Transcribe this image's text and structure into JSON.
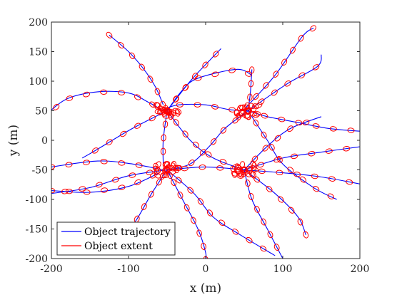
{
  "chart_data": {
    "type": "line",
    "title": "",
    "xlabel": "x (m)",
    "ylabel": "y (m)",
    "xlim": [
      -200,
      200
    ],
    "ylim": [
      -200,
      200
    ],
    "xticks": [
      -200,
      -100,
      0,
      100,
      200
    ],
    "yticks": [
      -200,
      -150,
      -100,
      -50,
      0,
      50,
      100,
      150,
      200
    ],
    "xtick_labels": [
      "-200",
      "-100",
      "0",
      "100",
      "200"
    ],
    "ytick_labels": [
      "-200",
      "-150",
      "-100",
      "-50",
      "0",
      "50",
      "100",
      "150",
      "200"
    ],
    "grid": false,
    "legend_position": "bottom-left",
    "colors": {
      "trajectory": "#0000ff",
      "extent": "#ff0000",
      "axis": "#262626"
    },
    "legend": [
      {
        "name": "Object trajectory",
        "style": "line",
        "color": "#0000ff"
      },
      {
        "name": "Object extent",
        "style": "line",
        "color": "#ff0000"
      }
    ],
    "clusters": [
      {
        "x": -50,
        "y": 50
      },
      {
        "x": 55,
        "y": 50
      },
      {
        "x": -50,
        "y": -50
      },
      {
        "x": 50,
        "y": -50
      }
    ],
    "series": [
      {
        "role": "trajectory",
        "points": [
          [
            -210,
            40
          ],
          [
            -180,
            70
          ],
          [
            -140,
            82
          ],
          [
            -100,
            80
          ],
          [
            -75,
            65
          ],
          [
            -55,
            50
          ]
        ]
      },
      {
        "role": "trajectory",
        "points": [
          [
            -55,
            52
          ],
          [
            -35,
            60
          ],
          [
            0,
            60
          ],
          [
            30,
            52
          ],
          [
            55,
            50
          ]
        ]
      },
      {
        "role": "trajectory",
        "points": [
          [
            55,
            50
          ],
          [
            80,
            40
          ],
          [
            120,
            30
          ],
          [
            160,
            20
          ],
          [
            205,
            15
          ]
        ]
      },
      {
        "role": "trajectory",
        "points": [
          [
            -125,
            178
          ],
          [
            -100,
            150
          ],
          [
            -80,
            120
          ],
          [
            -65,
            90
          ],
          [
            -55,
            60
          ]
        ]
      },
      {
        "role": "trajectory",
        "points": [
          [
            -50,
            50
          ],
          [
            -55,
            0
          ],
          [
            -55,
            -40
          ]
        ]
      },
      {
        "role": "trajectory",
        "points": [
          [
            -50,
            -50
          ],
          [
            0,
            -45
          ],
          [
            50,
            -50
          ]
        ]
      },
      {
        "role": "trajectory",
        "points": [
          [
            50,
            -50
          ],
          [
            100,
            -55
          ],
          [
            150,
            -62
          ],
          [
            205,
            -75
          ]
        ]
      },
      {
        "role": "trajectory",
        "points": [
          [
            -200,
            -85
          ],
          [
            -150,
            -88
          ],
          [
            -100,
            -78
          ],
          [
            -60,
            -55
          ]
        ]
      },
      {
        "role": "trajectory",
        "points": [
          [
            -200,
            -45
          ],
          [
            -140,
            -35
          ],
          [
            -95,
            -40
          ],
          [
            -55,
            -50
          ]
        ]
      },
      {
        "role": "trajectory",
        "points": [
          [
            55,
            50
          ],
          [
            58,
            80
          ],
          [
            60,
            120
          ]
        ]
      },
      {
        "role": "trajectory",
        "points": [
          [
            52,
            55
          ],
          [
            90,
            110
          ],
          [
            125,
            175
          ],
          [
            140,
            190
          ]
        ]
      },
      {
        "role": "trajectory",
        "points": [
          [
            55,
            50
          ],
          [
            105,
            95
          ],
          [
            145,
            125
          ],
          [
            150,
            145
          ]
        ]
      },
      {
        "role": "trajectory",
        "points": [
          [
            -50,
            50
          ],
          [
            -20,
            0
          ],
          [
            10,
            -30
          ],
          [
            50,
            -50
          ]
        ]
      },
      {
        "role": "trajectory",
        "points": [
          [
            -50,
            -50
          ],
          [
            -15,
            -90
          ],
          [
            10,
            -130
          ],
          [
            45,
            -160
          ],
          [
            90,
            -195
          ]
        ]
      },
      {
        "role": "trajectory",
        "points": [
          [
            -50,
            -50
          ],
          [
            -30,
            -100
          ],
          [
            -10,
            -150
          ],
          [
            0,
            -190
          ],
          [
            0,
            -205
          ]
        ]
      },
      {
        "role": "trajectory",
        "points": [
          [
            50,
            -50
          ],
          [
            60,
            -100
          ],
          [
            80,
            -150
          ],
          [
            100,
            -200
          ]
        ]
      },
      {
        "role": "trajectory",
        "points": [
          [
            50,
            -50
          ],
          [
            90,
            -90
          ],
          [
            120,
            -130
          ],
          [
            130,
            -160
          ]
        ]
      },
      {
        "role": "trajectory",
        "points": [
          [
            -50,
            -50
          ],
          [
            -70,
            -90
          ],
          [
            -90,
            -135
          ],
          [
            -110,
            -170
          ]
        ]
      },
      {
        "role": "trajectory",
        "points": [
          [
            50,
            -50
          ],
          [
            100,
            -30
          ],
          [
            150,
            -20
          ],
          [
            205,
            -10
          ]
        ]
      },
      {
        "role": "trajectory",
        "points": [
          [
            55,
            50
          ],
          [
            25,
            20
          ],
          [
            5,
            -10
          ],
          [
            -20,
            -40
          ],
          [
            -50,
            -50
          ]
        ]
      },
      {
        "role": "trajectory",
        "points": [
          [
            -50,
            50
          ],
          [
            -95,
            20
          ],
          [
            -140,
            -15
          ],
          [
            -160,
            -30
          ]
        ]
      },
      {
        "role": "trajectory",
        "points": [
          [
            -50,
            50
          ],
          [
            -20,
            100
          ],
          [
            5,
            135
          ],
          [
            20,
            155
          ]
        ]
      },
      {
        "role": "trajectory",
        "points": [
          [
            -50,
            50
          ],
          [
            -30,
            85
          ],
          [
            -10,
            105
          ],
          [
            40,
            120
          ],
          [
            60,
            110
          ]
        ]
      },
      {
        "role": "trajectory",
        "points": [
          [
            55,
            50
          ],
          [
            80,
            0
          ],
          [
            100,
            -40
          ],
          [
            140,
            -80
          ],
          [
            170,
            -100
          ]
        ]
      },
      {
        "role": "trajectory",
        "points": [
          [
            50,
            -50
          ],
          [
            80,
            -10
          ],
          [
            110,
            20
          ],
          [
            150,
            40
          ]
        ]
      },
      {
        "role": "trajectory",
        "points": [
          [
            -50,
            -50
          ],
          [
            -100,
            -60
          ],
          [
            -150,
            -80
          ],
          [
            -200,
            -90
          ]
        ]
      }
    ]
  },
  "legend_panel": {
    "trajectory_label": "Object trajectory",
    "extent_label": "Object extent"
  }
}
